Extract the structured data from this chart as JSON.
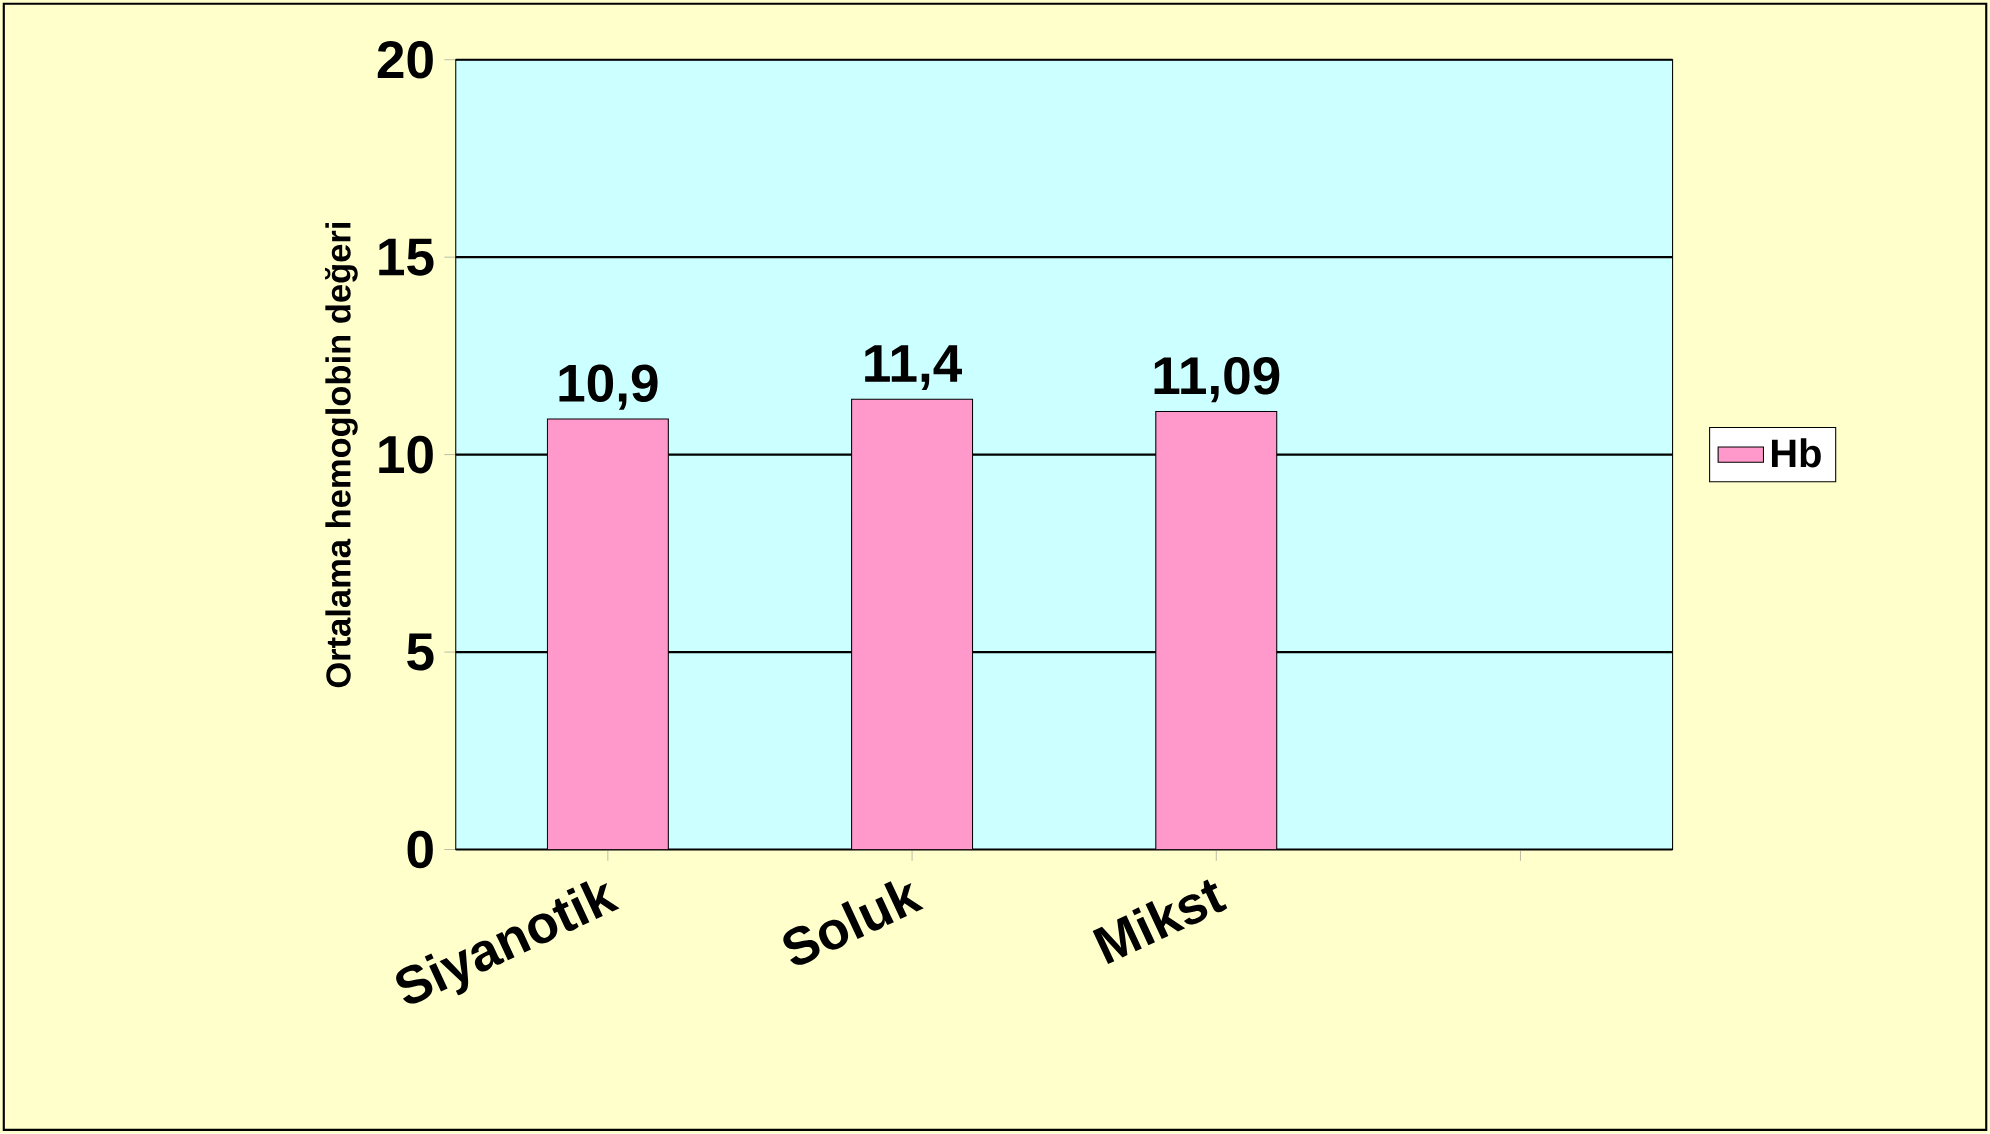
{
  "chart_data": {
    "type": "bar",
    "ylabel": "Ortalama hemoglobin değeri",
    "categories": [
      "Siyanotik",
      "Soluk",
      "Mikst",
      null
    ],
    "series": [
      {
        "name": "Hb",
        "color": "#ff99cc",
        "values": [
          10.9,
          11.4,
          11.09,
          null
        ],
        "value_labels": [
          "10,9",
          "11,4",
          "11,09",
          null
        ]
      }
    ],
    "ylim": [
      0,
      20
    ],
    "yticks": [
      0,
      5,
      10,
      15,
      20
    ],
    "grid": "y",
    "legend": "right"
  }
}
